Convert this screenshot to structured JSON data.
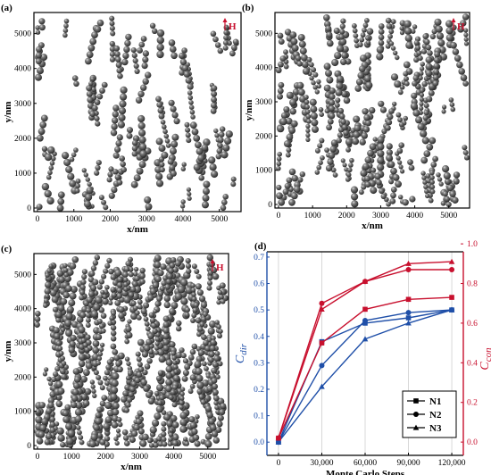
{
  "panels": [
    {
      "label": "(a)",
      "field_label": "H",
      "xlabel": "x/nm",
      "ylabel": "y/nm",
      "x_ticks": [
        "0",
        "1000",
        "2000",
        "3000",
        "4000",
        "5000"
      ],
      "y_ticks": [
        "0",
        "1000",
        "2000",
        "3000",
        "4000",
        "5000"
      ]
    },
    {
      "label": "(b)",
      "field_label": "H",
      "xlabel": "x/nm",
      "ylabel": "y/nm",
      "x_ticks": [
        "0",
        "1000",
        "2000",
        "3000",
        "4000",
        "5000"
      ],
      "y_ticks": [
        "0",
        "1000",
        "2000",
        "3000",
        "4000",
        "5000"
      ]
    },
    {
      "label": "(c)",
      "field_label": "H",
      "xlabel": "x/nm",
      "ylabel": "y/nm",
      "x_ticks": [
        "0",
        "1000",
        "2000",
        "3000",
        "4000",
        "5000"
      ],
      "y_ticks": [
        "0",
        "1000",
        "2000",
        "3000",
        "4000",
        "5000"
      ]
    }
  ],
  "colors": {
    "left_series": "#1f4fa8",
    "right_series": "#c8102e",
    "particle": "#4a4a4a",
    "field_label": "#c8102e"
  },
  "chart_data": {
    "type": "line",
    "label": "(d)",
    "xlabel": "Monte Carlo Steps",
    "ylabel_left": "C_dir",
    "ylabel_right": "C_con",
    "x": [
      0,
      30000,
      60000,
      90000,
      120000
    ],
    "x_tick_labels": [
      "0",
      "30,000",
      "60,000",
      "90,000",
      "120,000"
    ],
    "ylim_left": [
      -0.05,
      0.72
    ],
    "ylim_right": [
      -0.067,
      0.96
    ],
    "y_ticks_left": [
      "0.0",
      "0.1",
      "0.2",
      "0.3",
      "0.4",
      "0.5",
      "0.6",
      "0.7"
    ],
    "y_ticks_right": [
      "0.0",
      "0.2",
      "0.4",
      "0.6",
      "0.8",
      "1.0"
    ],
    "legend": {
      "placement": "bottom-right",
      "entries": [
        "N1",
        "N2",
        "N3"
      ]
    },
    "series": [
      {
        "name": "N1",
        "axis": "left",
        "marker": "square",
        "values": [
          0.0,
          0.38,
          0.45,
          0.47,
          0.5
        ]
      },
      {
        "name": "N2",
        "axis": "left",
        "marker": "circle",
        "values": [
          0.0,
          0.29,
          0.46,
          0.49,
          0.5
        ]
      },
      {
        "name": "N3",
        "axis": "left",
        "marker": "triangle",
        "values": [
          0.0,
          0.21,
          0.39,
          0.45,
          0.5
        ]
      },
      {
        "name": "N1",
        "axis": "right",
        "marker": "square",
        "values": [
          0.02,
          0.5,
          0.67,
          0.72,
          0.73
        ]
      },
      {
        "name": "N2",
        "axis": "right",
        "marker": "circle",
        "values": [
          0.02,
          0.7,
          0.81,
          0.87,
          0.87
        ]
      },
      {
        "name": "N3",
        "axis": "right",
        "marker": "triangle",
        "values": [
          0.02,
          0.67,
          0.81,
          0.9,
          0.91
        ]
      }
    ]
  }
}
